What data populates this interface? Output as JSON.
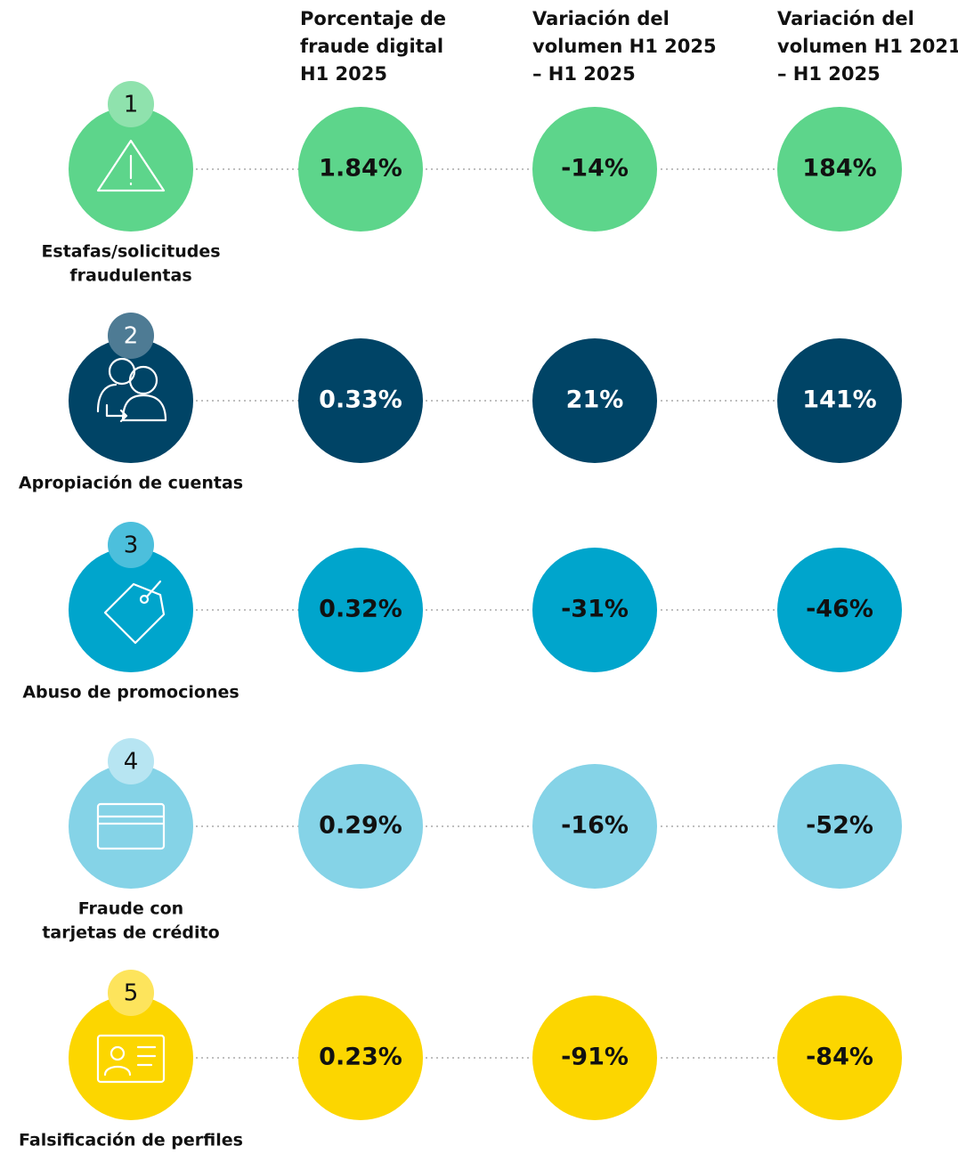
{
  "headers": [
    [
      "Porcentaje de",
      "fraude digital",
      "H1 2025"
    ],
    [
      "Variación del",
      "volumen H1 2025",
      "– H1 2025"
    ],
    [
      "Variación del",
      "volumen H1 2021",
      "– H1 2025"
    ]
  ],
  "rows": [
    {
      "number": "1",
      "label": [
        "Estafas/solicitudes",
        "fraudulentas"
      ],
      "values": [
        "1.84%",
        "-14%",
        "184%"
      ]
    },
    {
      "number": "2",
      "label": [
        "Apropiación de cuentas"
      ],
      "values": [
        "0.33%",
        "21%",
        "141%"
      ]
    },
    {
      "number": "3",
      "label": [
        "Abuso de promociones"
      ],
      "values": [
        "0.32%",
        "-31%",
        "-46%"
      ]
    },
    {
      "number": "4",
      "label": [
        "Fraude con",
        "tarjetas de crédito"
      ],
      "values": [
        "0.29%",
        "-16%",
        "-52%"
      ]
    },
    {
      "number": "5",
      "label": [
        "Falsificación de perfiles"
      ],
      "values": [
        "0.23%",
        "-91%",
        "-84%"
      ]
    }
  ]
}
